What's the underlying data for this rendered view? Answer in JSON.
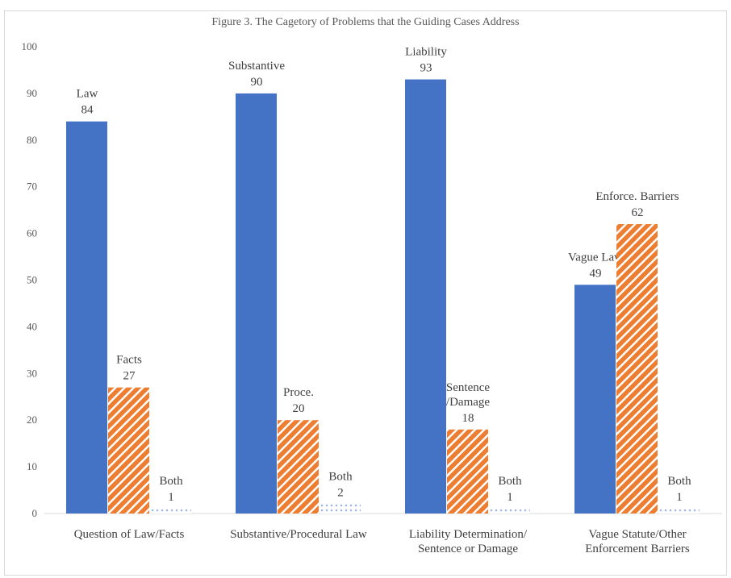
{
  "chart_data": {
    "type": "bar",
    "title": "Figure 3. The Cagetory of Problems that the Guiding Cases Address",
    "categories": [
      "Question of Law/Facts",
      "Substantive/Procedural Law",
      "Liability Determination/Sentence or Damage",
      "Vague Statute/Other Enforcement Barriers"
    ],
    "series": [
      {
        "color": "#4472c4",
        "pattern": "solid",
        "values": [
          84,
          90,
          93,
          49
        ],
        "point_labels": [
          "Law",
          "Substantive",
          "Liability",
          "Vague Law"
        ]
      },
      {
        "color": "#ed7d31",
        "pattern": "stripes",
        "values": [
          27,
          20,
          18,
          62
        ],
        "point_labels": [
          "Facts",
          "Proce.",
          "Sentence\n/Damage",
          "Enforce. Barriers"
        ]
      },
      {
        "color": "#9fb6e0",
        "pattern": "dots",
        "values": [
          1,
          2,
          1,
          1
        ],
        "point_labels": [
          "Both",
          "Both",
          "Both",
          "Both"
        ]
      }
    ],
    "ylim": [
      0,
      100
    ],
    "yticks": [
      0,
      10,
      20,
      30,
      40,
      50,
      60,
      70,
      80,
      90,
      100
    ],
    "grid": false
  }
}
